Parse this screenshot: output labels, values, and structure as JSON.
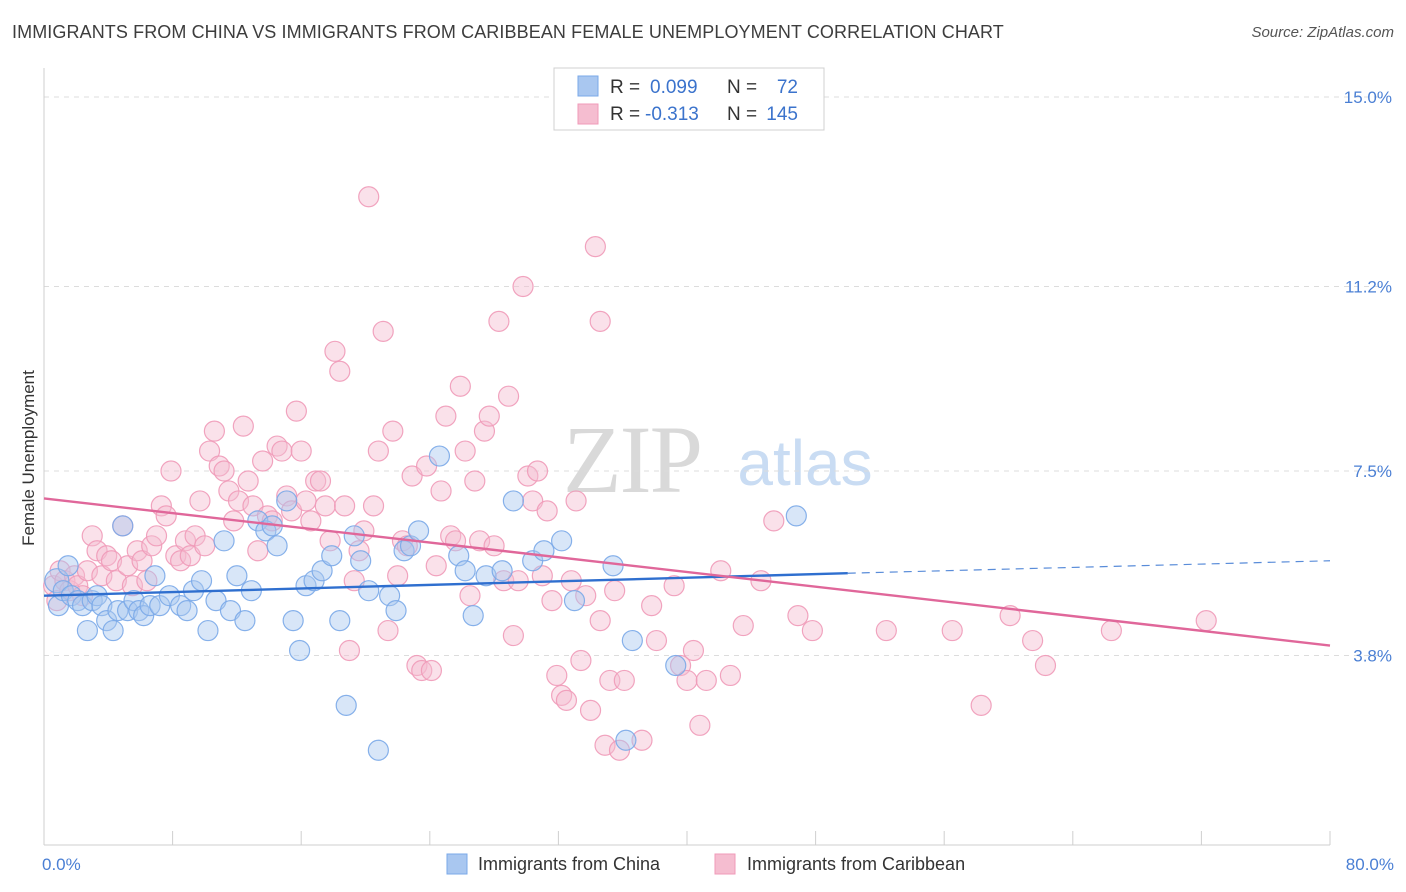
{
  "title": "IMMIGRANTS FROM CHINA VS IMMIGRANTS FROM CARIBBEAN FEMALE UNEMPLOYMENT CORRELATION CHART",
  "source": "Source: ZipAtlas.com",
  "watermark": {
    "zip": "ZIP",
    "atlas": "atlas"
  },
  "chart_data": {
    "type": "scatter",
    "xlabel": "",
    "ylabel": "Female Unemployment",
    "xlim": [
      0,
      80
    ],
    "ylim": [
      0,
      15.0
    ],
    "x_tick_labels": [
      {
        "value": 0,
        "label": "0.0%"
      },
      {
        "value": 80,
        "label": "80.0%"
      }
    ],
    "y_ticks": [
      {
        "value": 3.8,
        "label": "3.8%"
      },
      {
        "value": 7.5,
        "label": "7.5%"
      },
      {
        "value": 11.2,
        "label": "11.2%"
      },
      {
        "value": 15.0,
        "label": "15.0%"
      }
    ],
    "legend": {
      "position": "top-center",
      "entries": [
        {
          "series": "Immigrants from China",
          "r_label": "R =",
          "r_value": "0.099",
          "n_label": "N =",
          "n_value": "72"
        },
        {
          "series": "Immigrants from Caribbean",
          "r_label": "R =",
          "r_value": "-0.313",
          "n_label": "N =",
          "n_value": "145"
        }
      ]
    },
    "series": [
      {
        "name": "Immigrants from China",
        "color": "#7aa8e8",
        "fill": "#a9c7f0",
        "trend_color": "#2f6fcf",
        "trend": {
          "x0": 0,
          "y0": 5.0,
          "x1": 50,
          "y1": 5.45,
          "dash_x_end": 80,
          "dash_y_end": 5.7
        },
        "points": [
          [
            0.8,
            5.3
          ],
          [
            0.9,
            4.8
          ],
          [
            1.2,
            5.1
          ],
          [
            1.5,
            5.6
          ],
          [
            1.7,
            5.0
          ],
          [
            2.1,
            4.9
          ],
          [
            2.4,
            4.8
          ],
          [
            2.7,
            4.3
          ],
          [
            3.0,
            4.9
          ],
          [
            3.3,
            5.0
          ],
          [
            3.6,
            4.8
          ],
          [
            3.9,
            4.5
          ],
          [
            4.3,
            4.3
          ],
          [
            4.6,
            4.7
          ],
          [
            4.9,
            6.4
          ],
          [
            5.2,
            4.7
          ],
          [
            5.6,
            4.9
          ],
          [
            5.9,
            4.7
          ],
          [
            6.2,
            4.6
          ],
          [
            6.6,
            4.8
          ],
          [
            6.9,
            5.4
          ],
          [
            7.2,
            4.8
          ],
          [
            7.8,
            5.0
          ],
          [
            8.5,
            4.8
          ],
          [
            8.9,
            4.7
          ],
          [
            9.3,
            5.1
          ],
          [
            9.8,
            5.3
          ],
          [
            10.2,
            4.3
          ],
          [
            10.7,
            4.9
          ],
          [
            11.2,
            6.1
          ],
          [
            11.6,
            4.7
          ],
          [
            12.0,
            5.4
          ],
          [
            12.5,
            4.5
          ],
          [
            12.9,
            5.1
          ],
          [
            13.3,
            6.5
          ],
          [
            13.8,
            6.3
          ],
          [
            14.2,
            6.4
          ],
          [
            14.5,
            6.0
          ],
          [
            15.1,
            6.9
          ],
          [
            15.5,
            4.5
          ],
          [
            15.9,
            3.9
          ],
          [
            16.3,
            5.2
          ],
          [
            16.8,
            5.3
          ],
          [
            17.3,
            5.5
          ],
          [
            17.9,
            5.8
          ],
          [
            18.4,
            4.5
          ],
          [
            18.8,
            2.8
          ],
          [
            19.3,
            6.2
          ],
          [
            19.7,
            5.7
          ],
          [
            20.2,
            5.1
          ],
          [
            20.8,
            1.9
          ],
          [
            21.5,
            5.0
          ],
          [
            21.9,
            4.7
          ],
          [
            22.4,
            5.9
          ],
          [
            22.8,
            6.0
          ],
          [
            23.3,
            6.3
          ],
          [
            24.6,
            7.8
          ],
          [
            25.8,
            5.8
          ],
          [
            26.2,
            5.5
          ],
          [
            26.7,
            4.6
          ],
          [
            27.5,
            5.4
          ],
          [
            28.5,
            5.5
          ],
          [
            29.2,
            6.9
          ],
          [
            30.4,
            5.7
          ],
          [
            31.1,
            5.9
          ],
          [
            32.2,
            6.1
          ],
          [
            33.0,
            4.9
          ],
          [
            35.4,
            5.6
          ],
          [
            36.2,
            2.1
          ],
          [
            36.6,
            4.1
          ],
          [
            39.3,
            3.6
          ],
          [
            46.8,
            6.6
          ]
        ]
      },
      {
        "name": "Immigrants from Caribbean",
        "color": "#f09ab8",
        "fill": "#f5bdd0",
        "trend_color": "#e0679a",
        "trend": {
          "x0": 0,
          "y0": 6.95,
          "x1": 80,
          "y1": 4.0
        },
        "points": [
          [
            0.6,
            5.2
          ],
          [
            0.8,
            4.9
          ],
          [
            1.0,
            5.5
          ],
          [
            1.3,
            5.3
          ],
          [
            1.6,
            5.1
          ],
          [
            1.9,
            5.4
          ],
          [
            2.1,
            5.2
          ],
          [
            2.4,
            5.0
          ],
          [
            2.7,
            5.5
          ],
          [
            3.0,
            6.2
          ],
          [
            3.3,
            5.9
          ],
          [
            3.6,
            5.4
          ],
          [
            3.9,
            5.8
          ],
          [
            4.2,
            5.7
          ],
          [
            4.5,
            5.3
          ],
          [
            4.9,
            6.4
          ],
          [
            5.2,
            5.6
          ],
          [
            5.5,
            5.2
          ],
          [
            5.8,
            5.9
          ],
          [
            6.1,
            5.7
          ],
          [
            6.4,
            5.3
          ],
          [
            6.7,
            6.0
          ],
          [
            7.0,
            6.2
          ],
          [
            7.3,
            6.8
          ],
          [
            7.6,
            6.6
          ],
          [
            7.9,
            7.5
          ],
          [
            8.2,
            5.8
          ],
          [
            8.5,
            5.7
          ],
          [
            8.8,
            6.1
          ],
          [
            9.1,
            5.8
          ],
          [
            9.4,
            6.2
          ],
          [
            9.7,
            6.9
          ],
          [
            10.0,
            6.0
          ],
          [
            10.3,
            7.9
          ],
          [
            10.6,
            8.3
          ],
          [
            10.9,
            7.6
          ],
          [
            11.2,
            7.5
          ],
          [
            11.5,
            7.1
          ],
          [
            11.8,
            6.5
          ],
          [
            12.1,
            6.9
          ],
          [
            12.4,
            8.4
          ],
          [
            12.7,
            7.3
          ],
          [
            13.0,
            6.8
          ],
          [
            13.3,
            5.9
          ],
          [
            13.6,
            7.7
          ],
          [
            13.9,
            6.6
          ],
          [
            14.2,
            6.5
          ],
          [
            14.5,
            8.0
          ],
          [
            14.8,
            7.9
          ],
          [
            15.1,
            7.0
          ],
          [
            15.4,
            6.7
          ],
          [
            15.7,
            8.7
          ],
          [
            16.0,
            7.9
          ],
          [
            16.3,
            6.9
          ],
          [
            16.6,
            6.5
          ],
          [
            16.9,
            7.3
          ],
          [
            17.2,
            7.3
          ],
          [
            17.5,
            6.8
          ],
          [
            17.8,
            6.1
          ],
          [
            18.1,
            9.9
          ],
          [
            18.4,
            9.5
          ],
          [
            18.7,
            6.8
          ],
          [
            19.0,
            3.9
          ],
          [
            19.3,
            5.3
          ],
          [
            19.6,
            5.9
          ],
          [
            19.9,
            6.3
          ],
          [
            20.2,
            13.0
          ],
          [
            20.5,
            6.8
          ],
          [
            20.8,
            7.9
          ],
          [
            21.1,
            10.3
          ],
          [
            21.4,
            4.3
          ],
          [
            21.7,
            8.3
          ],
          [
            22.0,
            5.4
          ],
          [
            22.3,
            6.1
          ],
          [
            22.6,
            6.0
          ],
          [
            22.9,
            7.4
          ],
          [
            23.2,
            3.6
          ],
          [
            23.5,
            3.5
          ],
          [
            23.8,
            7.6
          ],
          [
            24.1,
            3.5
          ],
          [
            24.4,
            5.6
          ],
          [
            24.7,
            7.1
          ],
          [
            25.0,
            8.6
          ],
          [
            25.3,
            6.2
          ],
          [
            25.6,
            6.1
          ],
          [
            25.9,
            9.2
          ],
          [
            26.2,
            7.9
          ],
          [
            26.5,
            5.0
          ],
          [
            26.8,
            7.3
          ],
          [
            27.1,
            6.1
          ],
          [
            27.4,
            8.3
          ],
          [
            27.7,
            8.6
          ],
          [
            28.0,
            6.0
          ],
          [
            28.3,
            10.5
          ],
          [
            28.6,
            5.3
          ],
          [
            28.9,
            9.0
          ],
          [
            29.2,
            4.2
          ],
          [
            29.5,
            5.3
          ],
          [
            29.8,
            11.2
          ],
          [
            30.1,
            7.4
          ],
          [
            30.4,
            6.9
          ],
          [
            30.7,
            7.5
          ],
          [
            31.0,
            5.4
          ],
          [
            31.3,
            6.7
          ],
          [
            31.6,
            4.9
          ],
          [
            31.9,
            3.4
          ],
          [
            32.2,
            3.0
          ],
          [
            32.5,
            2.9
          ],
          [
            32.8,
            5.3
          ],
          [
            33.1,
            6.9
          ],
          [
            33.4,
            3.7
          ],
          [
            33.7,
            5.0
          ],
          [
            34.0,
            2.7
          ],
          [
            34.3,
            12.0
          ],
          [
            34.6,
            10.5
          ],
          [
            34.9,
            2.0
          ],
          [
            35.2,
            3.3
          ],
          [
            35.5,
            5.1
          ],
          [
            35.8,
            1.9
          ],
          [
            36.1,
            3.3
          ],
          [
            37.2,
            2.1
          ],
          [
            38.1,
            4.1
          ],
          [
            39.2,
            5.2
          ],
          [
            39.6,
            3.6
          ],
          [
            40.0,
            3.3
          ],
          [
            40.4,
            3.9
          ],
          [
            40.8,
            2.4
          ],
          [
            41.2,
            3.3
          ],
          [
            42.1,
            5.5
          ],
          [
            42.7,
            3.4
          ],
          [
            44.6,
            5.3
          ],
          [
            45.4,
            6.5
          ],
          [
            46.9,
            4.6
          ],
          [
            47.8,
            4.3
          ],
          [
            52.4,
            4.3
          ],
          [
            56.5,
            4.3
          ],
          [
            58.3,
            2.8
          ],
          [
            60.1,
            4.6
          ],
          [
            61.5,
            4.1
          ],
          [
            62.3,
            3.6
          ],
          [
            66.4,
            4.3
          ],
          [
            72.3,
            4.5
          ],
          [
            37.8,
            4.8
          ],
          [
            43.5,
            4.4
          ],
          [
            34.6,
            4.5
          ]
        ]
      }
    ]
  }
}
